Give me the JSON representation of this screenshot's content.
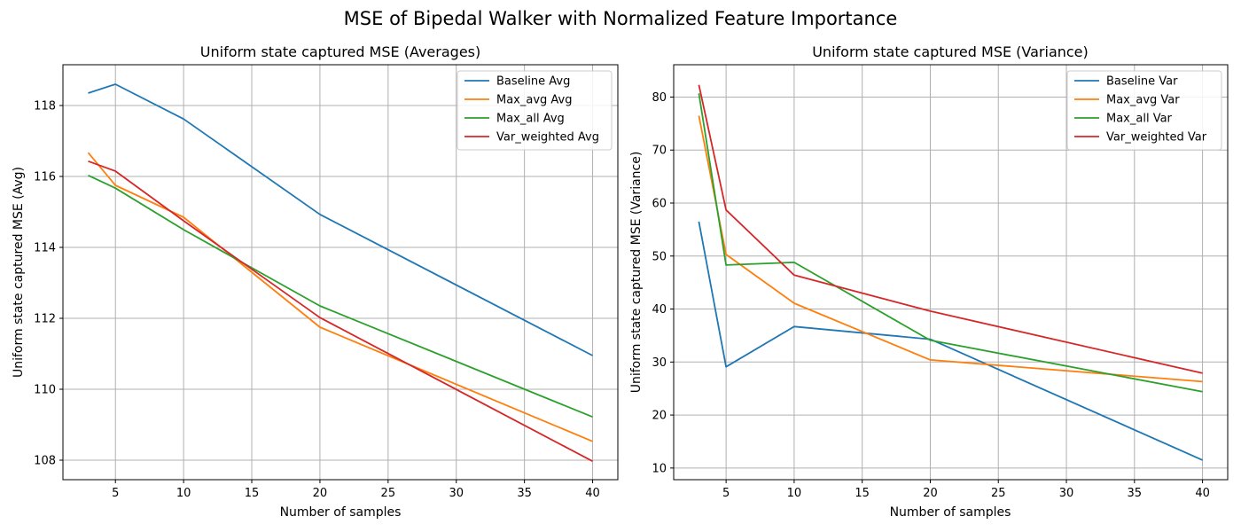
{
  "title": "MSE of Bipedal Walker with Normalized Feature Importance",
  "chart_data": [
    {
      "type": "line",
      "title": "Uniform state captured MSE (Averages)",
      "xlabel": "Number of samples",
      "ylabel": "Uniform state captured MSE (Avg)",
      "x": [
        3,
        5,
        10,
        20,
        40
      ],
      "xlim": [
        1.15,
        41.85
      ],
      "ylim": [
        107.45,
        119.15
      ],
      "xticks": [
        5,
        10,
        15,
        20,
        25,
        30,
        35,
        40
      ],
      "yticks": [
        108,
        110,
        112,
        114,
        116,
        118
      ],
      "grid": true,
      "legend_position": "top-right",
      "series": [
        {
          "name": "Baseline Avg",
          "color": "#1f77b4",
          "values": [
            118.35,
            118.6,
            117.62,
            114.93,
            110.95
          ]
        },
        {
          "name": "Max_avg Avg",
          "color": "#ff7f0e",
          "values": [
            116.67,
            115.75,
            114.85,
            111.75,
            108.53
          ]
        },
        {
          "name": "Max_all Avg",
          "color": "#2ca02c",
          "values": [
            116.03,
            115.67,
            114.5,
            112.35,
            109.22
          ]
        },
        {
          "name": "Var_weighted Avg",
          "color": "#d62728",
          "values": [
            116.43,
            116.15,
            114.75,
            112.02,
            107.97
          ]
        }
      ]
    },
    {
      "type": "line",
      "title": "Uniform state captured MSE (Variance)",
      "xlabel": "Number of samples",
      "ylabel": "Uniform state captured MSE (Variance)",
      "x": [
        3,
        5,
        10,
        20,
        40
      ],
      "xlim": [
        1.15,
        41.85
      ],
      "ylim": [
        7.8,
        86.1
      ],
      "xticks": [
        5,
        10,
        15,
        20,
        25,
        30,
        35,
        40
      ],
      "yticks": [
        10,
        20,
        30,
        40,
        50,
        60,
        70,
        80
      ],
      "grid": true,
      "legend_position": "top-right",
      "series": [
        {
          "name": "Baseline Var",
          "color": "#1f77b4",
          "values": [
            56.5,
            29.1,
            36.7,
            34.3,
            11.5
          ]
        },
        {
          "name": "Max_avg Var",
          "color": "#ff7f0e",
          "values": [
            76.5,
            50.3,
            41.1,
            30.4,
            26.3
          ]
        },
        {
          "name": "Max_all Var",
          "color": "#2ca02c",
          "values": [
            80.7,
            48.3,
            48.8,
            34.1,
            24.4
          ]
        },
        {
          "name": "Var_weighted Var",
          "color": "#d62728",
          "values": [
            82.3,
            58.7,
            46.4,
            39.6,
            27.9
          ]
        }
      ]
    }
  ]
}
